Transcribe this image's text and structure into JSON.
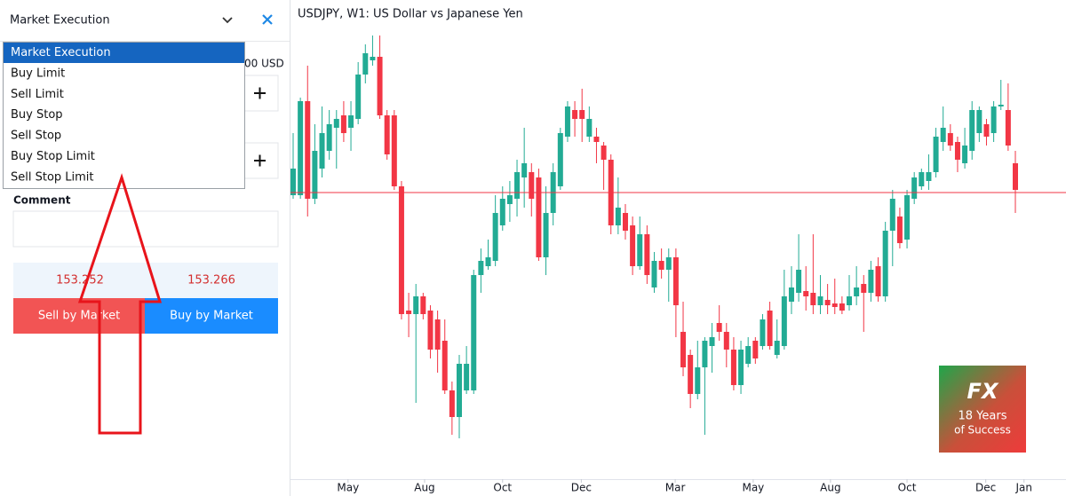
{
  "order_panel": {
    "selected_type": "Market Execution",
    "options": [
      "Market Execution",
      "Buy Limit",
      "Sell Limit",
      "Buy Stop",
      "Sell Stop",
      "Buy Stop Limit",
      "Sell Stop Limit"
    ],
    "volume_unit": "00 USD",
    "comment_label": "Comment",
    "prices": {
      "sell": 153.252,
      "buy": 153.266
    },
    "sell_button": "Sell by Market",
    "buy_button": "Buy by Market"
  },
  "logo": {
    "mark": "FX",
    "line1": "18 Years",
    "line2": "of Success"
  },
  "chart_data": {
    "type": "candlestick",
    "title": "USDJPY, W1: US Dollar vs Japanese Yen",
    "up_color": "#22ab94",
    "down_color": "#f23645",
    "ylim": [
      137.1,
      164.1
    ],
    "xlim": [
      -0.5,
      107.5
    ],
    "xticks": [
      {
        "value": 7.6,
        "label": "May"
      },
      {
        "value": 18.2,
        "label": "Aug"
      },
      {
        "value": 29.0,
        "label": "Oct"
      },
      {
        "value": 39.9,
        "label": "Dec"
      },
      {
        "value": 52.9,
        "label": "Mar"
      },
      {
        "value": 63.7,
        "label": "May"
      },
      {
        "value": 74.4,
        "label": "Aug"
      },
      {
        "value": 85.0,
        "label": "Oct"
      },
      {
        "value": 95.9,
        "label": "Dec"
      },
      {
        "value": 101.2,
        "label": "Jan"
      }
    ],
    "ohlc": [
      [
        153.1,
        156.6,
        152.9,
        154.6
      ],
      [
        153.1,
        158.6,
        152.9,
        158.4
      ],
      [
        158.4,
        160.4,
        151.9,
        152.9
      ],
      [
        152.9,
        157.1,
        152.6,
        155.6
      ],
      [
        154.6,
        158.1,
        154.1,
        156.6
      ],
      [
        155.6,
        157.9,
        155.1,
        157.1
      ],
      [
        156.9,
        157.9,
        154.6,
        157.4
      ],
      [
        157.6,
        158.4,
        156.1,
        156.6
      ],
      [
        156.9,
        158.4,
        155.6,
        157.6
      ],
      [
        157.4,
        160.6,
        157.1,
        159.9
      ],
      [
        159.9,
        161.6,
        159.4,
        161.1
      ],
      [
        160.7,
        162.1,
        160.4,
        160.9
      ],
      [
        160.9,
        162.1,
        157.4,
        157.6
      ],
      [
        157.6,
        157.9,
        155.1,
        155.4
      ],
      [
        157.6,
        157.9,
        153.4,
        153.6
      ],
      [
        153.6,
        153.9,
        146.1,
        146.4
      ],
      [
        146.6,
        147.6,
        145.1,
        146.4
      ],
      [
        146.4,
        148.1,
        141.4,
        147.4
      ],
      [
        147.4,
        147.6,
        146.1,
        146.4
      ],
      [
        146.6,
        146.9,
        143.9,
        144.4
      ],
      [
        146.1,
        146.6,
        143.1,
        144.4
      ],
      [
        144.9,
        146.1,
        141.9,
        142.1
      ],
      [
        142.1,
        142.6,
        139.6,
        140.6
      ],
      [
        140.6,
        144.1,
        139.4,
        143.6
      ],
      [
        142.1,
        144.6,
        141.9,
        143.6
      ],
      [
        142.1,
        148.9,
        141.9,
        148.6
      ],
      [
        148.6,
        150.1,
        147.6,
        149.4
      ],
      [
        149.1,
        150.6,
        148.9,
        149.6
      ],
      [
        149.4,
        153.1,
        149.1,
        152.1
      ],
      [
        151.4,
        153.6,
        151.1,
        152.9
      ],
      [
        152.6,
        153.9,
        151.6,
        153.1
      ],
      [
        152.9,
        155.1,
        151.9,
        154.4
      ],
      [
        154.1,
        156.9,
        152.4,
        154.9
      ],
      [
        154.4,
        154.9,
        151.9,
        152.9
      ],
      [
        154.1,
        154.6,
        149.4,
        149.6
      ],
      [
        149.6,
        153.6,
        148.6,
        152.1
      ],
      [
        152.1,
        154.9,
        151.4,
        154.4
      ],
      [
        153.6,
        156.9,
        153.4,
        156.6
      ],
      [
        156.4,
        158.4,
        156.1,
        158.1
      ],
      [
        157.9,
        158.4,
        156.4,
        157.4
      ],
      [
        157.9,
        159.1,
        156.1,
        157.4
      ],
      [
        156.4,
        158.1,
        156.1,
        157.4
      ],
      [
        156.4,
        156.9,
        154.9,
        156.1
      ],
      [
        155.9,
        156.1,
        153.4,
        155.1
      ],
      [
        155.1,
        155.4,
        150.9,
        151.4
      ],
      [
        151.4,
        154.1,
        150.9,
        152.4
      ],
      [
        152.1,
        152.6,
        150.6,
        151.1
      ],
      [
        151.4,
        151.9,
        148.6,
        149.1
      ],
      [
        149.1,
        151.9,
        148.9,
        150.9
      ],
      [
        150.9,
        151.4,
        148.1,
        148.6
      ],
      [
        147.9,
        149.9,
        147.6,
        149.4
      ],
      [
        149.4,
        150.1,
        148.4,
        148.9
      ],
      [
        148.9,
        150.1,
        147.1,
        149.6
      ],
      [
        149.6,
        150.1,
        145.1,
        146.9
      ],
      [
        145.4,
        147.1,
        142.9,
        143.4
      ],
      [
        144.1,
        144.4,
        141.1,
        141.9
      ],
      [
        141.9,
        144.9,
        141.6,
        143.4
      ],
      [
        143.4,
        145.1,
        139.6,
        144.9
      ],
      [
        144.6,
        145.9,
        143.1,
        145.1
      ],
      [
        145.9,
        146.9,
        144.9,
        145.4
      ],
      [
        145.4,
        145.9,
        143.4,
        144.4
      ],
      [
        144.4,
        145.1,
        142.1,
        142.4
      ],
      [
        142.4,
        144.9,
        141.9,
        144.4
      ],
      [
        143.6,
        145.1,
        143.4,
        144.6
      ],
      [
        144.9,
        145.1,
        143.6,
        143.9
      ],
      [
        144.6,
        146.4,
        144.4,
        146.1
      ],
      [
        146.6,
        147.1,
        144.4,
        144.6
      ],
      [
        144.1,
        146.1,
        143.9,
        144.9
      ],
      [
        144.6,
        148.9,
        144.4,
        147.4
      ],
      [
        147.1,
        149.1,
        146.4,
        147.9
      ],
      [
        147.6,
        150.9,
        147.1,
        148.9
      ],
      [
        147.7,
        149.1,
        146.6,
        147.4
      ],
      [
        147.6,
        150.9,
        146.4,
        146.9
      ],
      [
        146.9,
        148.6,
        146.4,
        147.4
      ],
      [
        147.2,
        148.1,
        146.4,
        146.9
      ],
      [
        147.0,
        148.4,
        146.4,
        146.8
      ],
      [
        147.0,
        147.4,
        146.4,
        146.6
      ],
      [
        146.9,
        148.6,
        146.6,
        147.4
      ],
      [
        147.4,
        149.1,
        146.9,
        147.9
      ],
      [
        148.1,
        148.6,
        145.4,
        147.6
      ],
      [
        147.6,
        149.4,
        147.1,
        148.9
      ],
      [
        149.1,
        149.6,
        147.1,
        147.4
      ],
      [
        147.4,
        151.6,
        147.1,
        151.1
      ],
      [
        151.1,
        153.4,
        149.1,
        152.9
      ],
      [
        151.9,
        152.4,
        150.1,
        150.4
      ],
      [
        150.6,
        153.4,
        150.1,
        153.1
      ],
      [
        152.9,
        154.4,
        152.6,
        154.1
      ],
      [
        153.6,
        154.6,
        153.4,
        154.4
      ],
      [
        153.9,
        155.4,
        153.4,
        154.4
      ],
      [
        154.4,
        156.9,
        154.1,
        156.4
      ],
      [
        156.1,
        158.1,
        155.6,
        156.9
      ],
      [
        156.6,
        157.1,
        155.6,
        155.9
      ],
      [
        156.1,
        156.4,
        154.4,
        155.1
      ],
      [
        154.9,
        156.9,
        154.6,
        155.9
      ],
      [
        155.6,
        158.4,
        155.1,
        157.9
      ],
      [
        156.6,
        158.1,
        156.1,
        157.9
      ],
      [
        157.1,
        157.4,
        155.9,
        156.4
      ],
      [
        156.6,
        158.4,
        156.1,
        158.1
      ],
      [
        158.1,
        159.6,
        157.9,
        158.2
      ],
      [
        157.9,
        159.4,
        155.6,
        155.9
      ],
      [
        154.9,
        155.6,
        152.1,
        153.4
      ]
    ]
  }
}
